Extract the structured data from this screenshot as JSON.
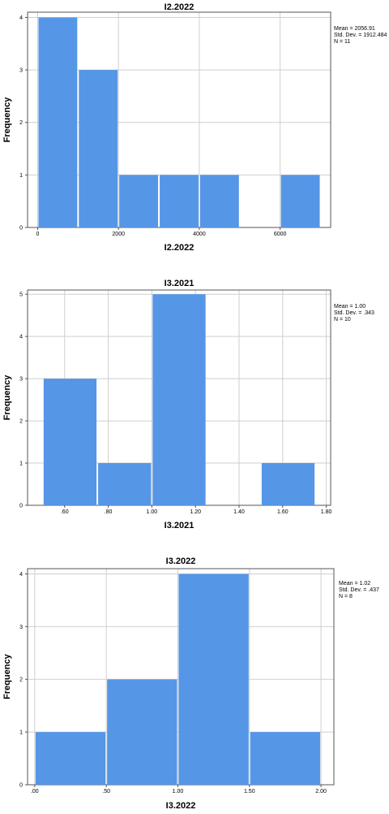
{
  "chart_data": [
    {
      "type": "bar",
      "title": "I2.2022",
      "xlabel": "I2.2022",
      "ylabel": "Frequency",
      "bins": [
        {
          "start": 0,
          "end": 1000,
          "count": 4
        },
        {
          "start": 1000,
          "end": 2000,
          "count": 3
        },
        {
          "start": 2000,
          "end": 3000,
          "count": 1
        },
        {
          "start": 3000,
          "end": 4000,
          "count": 1
        },
        {
          "start": 4000,
          "end": 5000,
          "count": 1
        },
        {
          "start": 5000,
          "end": 6000,
          "count": 0
        },
        {
          "start": 6000,
          "end": 7000,
          "count": 1
        }
      ],
      "xlim": [
        -250,
        7250
      ],
      "ylim": [
        0,
        4.1
      ],
      "xticks": [
        0,
        2000,
        4000,
        6000
      ],
      "xtick_labels": [
        "0",
        "2000",
        "4000",
        "6000"
      ],
      "yticks": [
        0,
        1,
        2,
        3,
        4
      ],
      "ytick_labels": [
        "0",
        "1",
        "2",
        "3",
        "4"
      ],
      "stats": [
        "Mean = 2056.91",
        "Std. Dev. = 1912.484",
        "N = 11"
      ],
      "grid": true,
      "bar_color": "#5596e6"
    },
    {
      "type": "bar",
      "title": "I3.2021",
      "xlabel": "I3.2021",
      "ylabel": "Frequency",
      "bins": [
        {
          "start": 0.5,
          "end": 0.75,
          "count": 3
        },
        {
          "start": 0.75,
          "end": 1.0,
          "count": 1
        },
        {
          "start": 1.0,
          "end": 1.25,
          "count": 5
        },
        {
          "start": 1.25,
          "end": 1.5,
          "count": 0
        },
        {
          "start": 1.5,
          "end": 1.75,
          "count": 1
        }
      ],
      "xlim": [
        0.43,
        1.82
      ],
      "ylim": [
        0,
        5.1
      ],
      "xticks": [
        0.6,
        0.8,
        1.0,
        1.2,
        1.4,
        1.6,
        1.8
      ],
      "xtick_labels": [
        ".60",
        ".80",
        "1.00",
        "1.20",
        "1.40",
        "1.60",
        "1.80"
      ],
      "yticks": [
        0,
        1,
        2,
        3,
        4,
        5
      ],
      "ytick_labels": [
        "0",
        "1",
        "2",
        "3",
        "4",
        "5"
      ],
      "stats": [
        "Mean = 1.00",
        "Std. Dev. = .343",
        "N = 10"
      ],
      "grid": true,
      "bar_color": "#5596e6"
    },
    {
      "type": "bar",
      "title": "I3.2022",
      "xlabel": "I3.2022",
      "ylabel": "Frequency",
      "bins": [
        {
          "start": 0.0,
          "end": 0.5,
          "count": 1
        },
        {
          "start": 0.5,
          "end": 1.0,
          "count": 2
        },
        {
          "start": 1.0,
          "end": 1.5,
          "count": 4
        },
        {
          "start": 1.5,
          "end": 2.0,
          "count": 1
        }
      ],
      "xlim": [
        -0.05,
        2.09
      ],
      "ylim": [
        0,
        4.1
      ],
      "xticks": [
        0,
        0.5,
        1.0,
        1.5,
        2.0
      ],
      "xtick_labels": [
        ".00",
        ".50",
        "1.00",
        "1.50",
        "2.00"
      ],
      "yticks": [
        0,
        1,
        2,
        3,
        4
      ],
      "ytick_labels": [
        "0",
        "1",
        "2",
        "3",
        "4"
      ],
      "stats": [
        "Mean = 1.02",
        "Std. Dev. = .437",
        "N = 8"
      ],
      "grid": true,
      "bar_color": "#5596e6"
    }
  ]
}
